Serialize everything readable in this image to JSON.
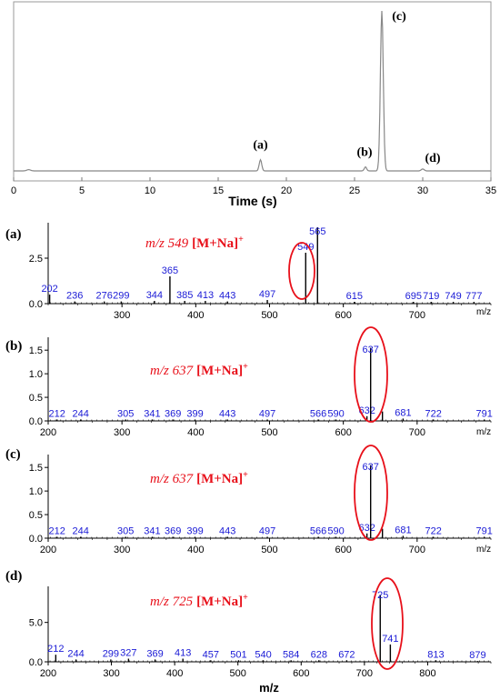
{
  "colors": {
    "axis": "#555555",
    "trace": "#888888",
    "spectrum": "#000000",
    "peak_label": "#1a1ad6",
    "annotation": "#e8101a",
    "text": "#000000"
  },
  "chart_data": [
    {
      "id": "chromatogram",
      "type": "line",
      "xlabel": "Time  (s)",
      "xlim": [
        0,
        35
      ],
      "x_ticks": [
        0,
        5,
        10,
        15,
        20,
        25,
        30,
        35
      ],
      "ylim": [
        0,
        1
      ],
      "peaks": [
        {
          "label": "(a)",
          "x": 18.1,
          "y": 0.07
        },
        {
          "label": "(b)",
          "x": 25.8,
          "y": 0.025
        },
        {
          "label": "(c)",
          "x": 27.0,
          "y": 1.0
        },
        {
          "label": "(d)",
          "x": 30.0,
          "y": 0.012
        }
      ]
    },
    {
      "id": "ms_a",
      "type": "bar",
      "panel_label": "(a)",
      "annotation_mz": "m/z 549",
      "annotation_ion": "[M+Na]",
      "annotation_sup": "+",
      "xlabel": "m/z",
      "xlim": [
        200,
        800
      ],
      "x_ticks": [
        300,
        400,
        500,
        600,
        700
      ],
      "ylim": [
        0,
        4.2
      ],
      "y_ticks": [
        0.0,
        2.5
      ],
      "y_tick_labels": [
        "0.0",
        "2.5"
      ],
      "peaks": [
        {
          "mz": 202,
          "i": 0.5,
          "label": "202"
        },
        {
          "mz": 236,
          "i": 0.12,
          "label": "236"
        },
        {
          "mz": 276,
          "i": 0.12,
          "label": "276"
        },
        {
          "mz": 299,
          "i": 0.12,
          "label": "299"
        },
        {
          "mz": 344,
          "i": 0.15,
          "label": "344"
        },
        {
          "mz": 365,
          "i": 1.5,
          "label": "365"
        },
        {
          "mz": 385,
          "i": 0.15,
          "label": "385"
        },
        {
          "mz": 413,
          "i": 0.15,
          "label": "413"
        },
        {
          "mz": 443,
          "i": 0.12,
          "label": "443"
        },
        {
          "mz": 497,
          "i": 0.2,
          "label": "497"
        },
        {
          "mz": 549,
          "i": 2.8,
          "label": "549"
        },
        {
          "mz": 565,
          "i": 4.2,
          "label": "565"
        },
        {
          "mz": 615,
          "i": 0.1,
          "label": "615"
        },
        {
          "mz": 695,
          "i": 0.1,
          "label": "695"
        },
        {
          "mz": 719,
          "i": 0.1,
          "label": "719"
        },
        {
          "mz": 749,
          "i": 0.1,
          "label": "749"
        },
        {
          "mz": 777,
          "i": 0.1,
          "label": "777"
        }
      ]
    },
    {
      "id": "ms_b",
      "type": "bar",
      "panel_label": "(b)",
      "annotation_mz": "m/z 637",
      "annotation_ion": "[M+Na]",
      "annotation_sup": "+",
      "xlabel": "m/z",
      "xlim": [
        200,
        800
      ],
      "x_ticks": [
        200,
        300,
        400,
        500,
        600,
        700
      ],
      "ylim": [
        0,
        1.6
      ],
      "y_ticks": [
        0.0,
        0.5,
        1.0,
        1.5
      ],
      "y_tick_labels": [
        "0.0",
        "0.5",
        "1.0",
        "1.5"
      ],
      "peaks": [
        {
          "mz": 212,
          "i": 0.03,
          "label": "212"
        },
        {
          "mz": 244,
          "i": 0.03,
          "label": "244"
        },
        {
          "mz": 305,
          "i": 0.03,
          "label": "305"
        },
        {
          "mz": 341,
          "i": 0.03,
          "label": "341"
        },
        {
          "mz": 369,
          "i": 0.03,
          "label": "369"
        },
        {
          "mz": 399,
          "i": 0.03,
          "label": "399"
        },
        {
          "mz": 443,
          "i": 0.03,
          "label": "443"
        },
        {
          "mz": 497,
          "i": 0.03,
          "label": "497"
        },
        {
          "mz": 566,
          "i": 0.03,
          "label": "566"
        },
        {
          "mz": 590,
          "i": 0.03,
          "label": "590"
        },
        {
          "mz": 632,
          "i": 0.1,
          "label": "632"
        },
        {
          "mz": 637,
          "i": 1.55,
          "label": "637"
        },
        {
          "mz": 653,
          "i": 0.2,
          "label": ""
        },
        {
          "mz": 681,
          "i": 0.05,
          "label": "681"
        },
        {
          "mz": 722,
          "i": 0.03,
          "label": "722"
        },
        {
          "mz": 791,
          "i": 0.03,
          "label": "791"
        }
      ]
    },
    {
      "id": "ms_c",
      "type": "bar",
      "panel_label": "(c)",
      "annotation_mz": "m/z 637",
      "annotation_ion": "[M+Na]",
      "annotation_sup": "+",
      "xlabel": "m/z",
      "xlim": [
        200,
        800
      ],
      "x_ticks": [
        200,
        300,
        400,
        500,
        600,
        700
      ],
      "ylim": [
        0,
        1.6
      ],
      "y_ticks": [
        0.0,
        0.5,
        1.0,
        1.5
      ],
      "y_tick_labels": [
        "0.0",
        "0.5",
        "1.0",
        "1.5"
      ],
      "peaks": [
        {
          "mz": 212,
          "i": 0.03,
          "label": "212"
        },
        {
          "mz": 244,
          "i": 0.03,
          "label": "244"
        },
        {
          "mz": 305,
          "i": 0.03,
          "label": "305"
        },
        {
          "mz": 341,
          "i": 0.03,
          "label": "341"
        },
        {
          "mz": 369,
          "i": 0.03,
          "label": "369"
        },
        {
          "mz": 399,
          "i": 0.03,
          "label": "399"
        },
        {
          "mz": 443,
          "i": 0.03,
          "label": "443"
        },
        {
          "mz": 497,
          "i": 0.03,
          "label": "497"
        },
        {
          "mz": 566,
          "i": 0.03,
          "label": "566"
        },
        {
          "mz": 590,
          "i": 0.03,
          "label": "590"
        },
        {
          "mz": 632,
          "i": 0.1,
          "label": "632"
        },
        {
          "mz": 637,
          "i": 1.55,
          "label": "637"
        },
        {
          "mz": 653,
          "i": 0.2,
          "label": ""
        },
        {
          "mz": 681,
          "i": 0.05,
          "label": "681"
        },
        {
          "mz": 722,
          "i": 0.03,
          "label": "722"
        },
        {
          "mz": 791,
          "i": 0.03,
          "label": "791"
        }
      ]
    },
    {
      "id": "ms_d",
      "type": "bar",
      "panel_label": "(d)",
      "annotation_mz": "m/z 725",
      "annotation_ion": "[M+Na]",
      "annotation_sup": "+",
      "xlabel": "m/z",
      "xlim": [
        200,
        900
      ],
      "x_ticks": [
        200,
        300,
        400,
        500,
        600,
        700,
        800
      ],
      "ylim": [
        0,
        9
      ],
      "y_ticks": [
        0.0,
        5.0
      ],
      "y_tick_labels": [
        "0.0",
        "5.0"
      ],
      "peaks": [
        {
          "mz": 212,
          "i": 0.9,
          "label": "212"
        },
        {
          "mz": 244,
          "i": 0.3,
          "label": "244"
        },
        {
          "mz": 299,
          "i": 0.3,
          "label": "299"
        },
        {
          "mz": 327,
          "i": 0.4,
          "label": "327"
        },
        {
          "mz": 369,
          "i": 0.3,
          "label": "369"
        },
        {
          "mz": 413,
          "i": 0.4,
          "label": "413"
        },
        {
          "mz": 457,
          "i": 0.2,
          "label": "457"
        },
        {
          "mz": 501,
          "i": 0.2,
          "label": "501"
        },
        {
          "mz": 540,
          "i": 0.2,
          "label": "540"
        },
        {
          "mz": 584,
          "i": 0.2,
          "label": "584"
        },
        {
          "mz": 628,
          "i": 0.2,
          "label": "628"
        },
        {
          "mz": 672,
          "i": 0.2,
          "label": "672"
        },
        {
          "mz": 725,
          "i": 8.5,
          "label": "725"
        },
        {
          "mz": 741,
          "i": 2.2,
          "label": "741"
        },
        {
          "mz": 813,
          "i": 0.2,
          "label": "813"
        },
        {
          "mz": 879,
          "i": 0.1,
          "label": "879"
        }
      ]
    }
  ]
}
